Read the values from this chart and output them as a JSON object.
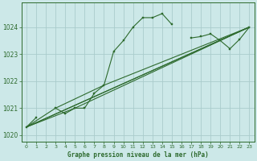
{
  "title": "Graphe pression niveau de la mer (hPa)",
  "bg_color": "#cce8e8",
  "grid_color": "#aacccc",
  "line_color": "#2d6a2d",
  "xlim": [
    -0.5,
    23.5
  ],
  "ylim": [
    1019.75,
    1024.9
  ],
  "yticks": [
    1020,
    1021,
    1022,
    1023,
    1024
  ],
  "xticks": [
    0,
    1,
    2,
    3,
    4,
    5,
    6,
    7,
    8,
    9,
    10,
    11,
    12,
    13,
    14,
    15,
    16,
    17,
    18,
    19,
    20,
    21,
    22,
    23
  ],
  "main_x": [
    0,
    1,
    2,
    3,
    4,
    5,
    6,
    7,
    8,
    9,
    10,
    11,
    12,
    13,
    14,
    15,
    16,
    17,
    18,
    19,
    20,
    21,
    22,
    23
  ],
  "main_y": [
    1020.3,
    1020.65,
    null,
    1021.0,
    1020.8,
    1021.0,
    1021.0,
    1021.55,
    1021.85,
    1023.1,
    1023.5,
    1024.0,
    1024.35,
    1024.35,
    1024.5,
    1024.1,
    null,
    1023.6,
    1023.65,
    1023.75,
    1023.5,
    1023.2,
    1023.55,
    1024.0
  ],
  "line2_x": [
    0,
    3,
    8,
    23
  ],
  "line2_y": [
    1020.3,
    1021.0,
    1021.85,
    1024.0
  ],
  "line3_x": [
    0,
    5,
    23
  ],
  "line3_y": [
    1020.3,
    1021.0,
    1024.0
  ],
  "line4_x": [
    0,
    23
  ],
  "line4_y": [
    1020.3,
    1024.0
  ],
  "line5_x": [
    0,
    23
  ],
  "line5_y": [
    1020.3,
    1024.0
  ]
}
